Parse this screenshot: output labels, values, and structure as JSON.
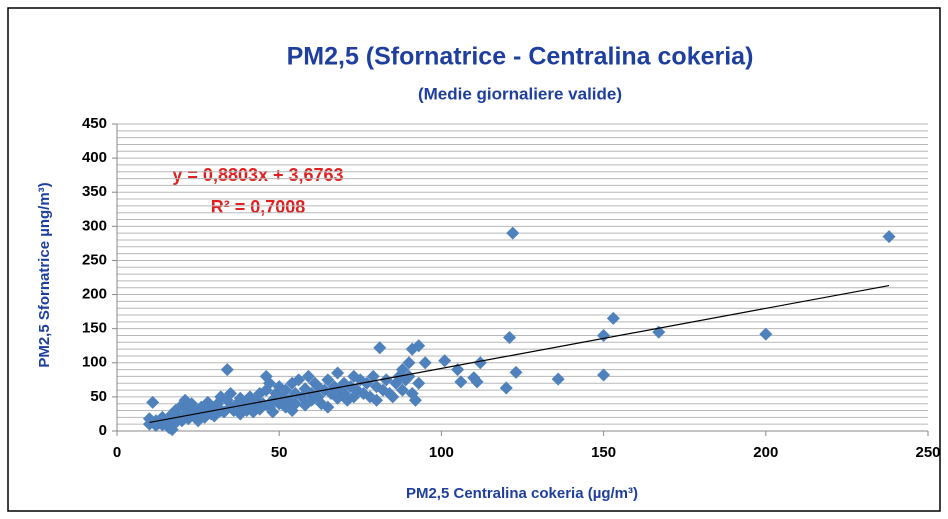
{
  "chart_data": {
    "type": "scatter",
    "title": "PM2,5 (Sfornatrice - Centralina cokeria)",
    "subtitle": "(Medie giornaliere valide)",
    "x_label": "PM2,5 Centralina  cokeria (µg/m³)",
    "y_label": "PM2,5  Sfornatrice µng/m³)",
    "annotations": [
      "y = 0,8803x + 3,6763",
      "R² = 0,7008"
    ],
    "color": "#4f81bd",
    "xlim": [
      0,
      250
    ],
    "ylim": [
      0,
      450
    ],
    "xticks": [
      0,
      50,
      100,
      150,
      200,
      250
    ],
    "yticks": [
      0,
      50,
      100,
      150,
      200,
      250,
      300,
      350,
      400,
      450
    ],
    "ygrid": [
      0,
      10,
      20,
      30,
      40,
      50,
      60,
      70,
      80,
      90,
      100,
      110,
      120,
      130,
      140,
      150,
      160,
      170,
      180,
      190,
      200,
      210,
      220,
      230,
      240,
      250,
      260,
      270,
      280,
      290,
      300,
      310,
      320,
      330,
      340,
      350,
      360,
      370,
      380,
      390,
      400,
      410,
      420,
      430,
      440,
      450
    ],
    "trendline": {
      "x": [
        10,
        238
      ],
      "y": [
        12.5,
        213.2
      ]
    },
    "x": [
      10,
      10,
      11,
      12,
      12,
      13,
      14,
      14,
      15,
      16,
      16,
      17,
      17,
      18,
      18,
      19,
      20,
      20,
      21,
      21,
      22,
      22,
      23,
      24,
      24,
      25,
      25,
      26,
      27,
      28,
      28,
      29,
      30,
      30,
      31,
      32,
      32,
      33,
      34,
      34,
      35,
      35,
      36,
      37,
      38,
      38,
      39,
      40,
      40,
      41,
      42,
      42,
      43,
      44,
      44,
      45,
      46,
      46,
      47,
      47,
      48,
      48,
      49,
      50,
      50,
      51,
      52,
      52,
      53,
      54,
      54,
      55,
      55,
      56,
      57,
      58,
      58,
      59,
      60,
      60,
      61,
      62,
      62,
      63,
      64,
      65,
      65,
      66,
      67,
      68,
      68,
      69,
      70,
      70,
      71,
      72,
      73,
      73,
      74,
      75,
      76,
      77,
      78,
      79,
      80,
      80,
      81,
      82,
      83,
      84,
      85,
      86,
      87,
      88,
      88,
      89,
      90,
      90,
      91,
      91,
      92,
      93,
      93,
      95,
      101,
      105,
      106,
      110,
      111,
      112,
      120,
      121,
      122,
      123,
      136,
      150,
      150,
      153,
      167,
      200,
      238
    ],
    "values": [
      10,
      18,
      42,
      8,
      15,
      12,
      20,
      9,
      14,
      18,
      5,
      2,
      25,
      12,
      30,
      20,
      15,
      38,
      45,
      25,
      18,
      32,
      40,
      22,
      30,
      28,
      15,
      35,
      20,
      30,
      42,
      25,
      35,
      22,
      40,
      30,
      50,
      28,
      90,
      45,
      35,
      55,
      30,
      40,
      25,
      48,
      35,
      45,
      30,
      50,
      38,
      28,
      45,
      55,
      32,
      40,
      80,
      60,
      35,
      70,
      45,
      28,
      55,
      40,
      65,
      50,
      35,
      60,
      45,
      70,
      30,
      55,
      40,
      75,
      50,
      62,
      38,
      80,
      55,
      45,
      70,
      50,
      65,
      40,
      60,
      75,
      35,
      55,
      65,
      85,
      48,
      60,
      55,
      70,
      45,
      65,
      80,
      50,
      60,
      75,
      55,
      70,
      50,
      80,
      65,
      45,
      122,
      60,
      75,
      55,
      50,
      70,
      80,
      90,
      60,
      75,
      80,
      100,
      120,
      55,
      45,
      125,
      70,
      100,
      103,
      90,
      72,
      78,
      72,
      100,
      63,
      137,
      290,
      86,
      76,
      140,
      82,
      165,
      145,
      142,
      285
    ]
  }
}
